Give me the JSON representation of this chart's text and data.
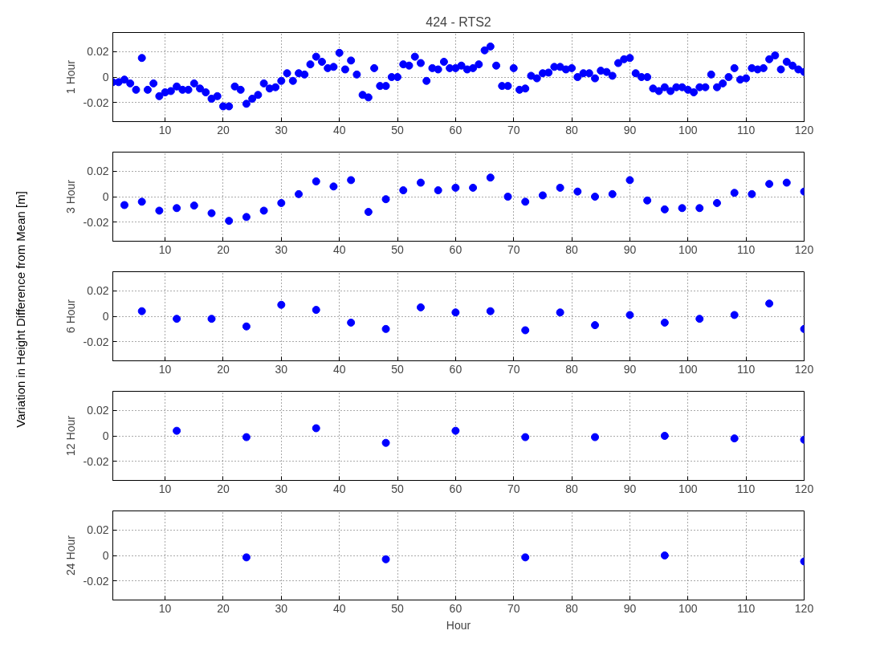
{
  "chart_data": [
    {
      "type": "scatter",
      "title": "424 - RTS2",
      "ylabel": "1 Hour",
      "annotations": [
        "Variation in Height Difference from Mean [m]"
      ],
      "xlim": [
        1,
        120
      ],
      "ylim": [
        -0.035,
        0.035
      ],
      "xticks": [
        10,
        20,
        30,
        40,
        50,
        60,
        70,
        80,
        90,
        100,
        110,
        120
      ],
      "yticks": [
        -0.02,
        0,
        0.02
      ],
      "grid": true,
      "marker": "circle",
      "x": [
        1,
        2,
        3,
        4,
        5,
        6,
        7,
        8,
        9,
        10,
        11,
        12,
        13,
        14,
        15,
        16,
        17,
        18,
        19,
        20,
        21,
        22,
        23,
        24,
        25,
        26,
        27,
        28,
        29,
        30,
        31,
        32,
        33,
        34,
        35,
        36,
        37,
        38,
        39,
        40,
        41,
        42,
        43,
        44,
        45,
        46,
        47,
        48,
        49,
        50,
        51,
        52,
        53,
        54,
        55,
        56,
        57,
        58,
        59,
        60,
        61,
        62,
        63,
        64,
        65,
        66,
        67,
        68,
        69,
        70,
        71,
        72,
        73,
        74,
        75,
        76,
        77,
        78,
        79,
        80,
        81,
        82,
        83,
        84,
        85,
        86,
        87,
        88,
        89,
        90,
        91,
        92,
        93,
        94,
        95,
        96,
        97,
        98,
        99,
        100,
        101,
        102,
        103,
        104,
        105,
        106,
        107,
        108,
        109,
        110,
        111,
        112,
        113,
        114,
        115,
        116,
        117,
        118,
        119,
        120
      ],
      "series": [
        {
          "color": "#0000ff",
          "values": [
            -0.004,
            -0.004,
            -0.002,
            -0.005,
            -0.01,
            0.015,
            -0.01,
            -0.005,
            -0.015,
            -0.012,
            -0.011,
            -0.0074,
            -0.01,
            -0.01,
            -0.005,
            -0.009,
            -0.012,
            -0.017,
            -0.015,
            -0.023,
            -0.023,
            -0.0074,
            -0.01,
            -0.021,
            -0.017,
            -0.014,
            -0.005,
            -0.009,
            -0.008,
            -0.003,
            0.003,
            -0.003,
            0.003,
            0.002,
            0.01,
            0.016,
            0.012,
            0.007,
            0.008,
            0.019,
            0.006,
            0.013,
            0.002,
            -0.014,
            -0.016,
            0.007,
            -0.007,
            -0.007,
            0.0,
            0.0,
            0.01,
            0.009,
            0.016,
            0.011,
            -0.003,
            0.007,
            0.006,
            0.012,
            0.007,
            0.007,
            0.009,
            0.006,
            0.007,
            0.01,
            0.021,
            0.024,
            0.009,
            -0.007,
            -0.007,
            0.007,
            -0.01,
            -0.009,
            0.001,
            -0.001,
            0.003,
            0.0035,
            0.008,
            0.008,
            0.006,
            0.007,
            0.0,
            0.003,
            0.003,
            -0.001,
            0.005,
            0.004,
            0.001,
            0.011,
            0.014,
            0.015,
            0.003,
            0.0,
            0.0,
            -0.009,
            -0.011,
            -0.008,
            -0.011,
            -0.008,
            -0.008,
            -0.01,
            -0.012,
            -0.008,
            -0.008,
            0.002,
            -0.008,
            -0.005,
            0.0,
            0.007,
            -0.002,
            -0.001,
            0.007,
            0.006,
            0.007,
            0.014,
            0.017,
            0.006,
            0.012,
            0.009,
            0.006,
            0.004
          ]
        }
      ]
    },
    {
      "type": "scatter",
      "ylabel": "3 Hour",
      "xlim": [
        1,
        120
      ],
      "ylim": [
        -0.035,
        0.035
      ],
      "xticks": [
        10,
        20,
        30,
        40,
        50,
        60,
        70,
        80,
        90,
        100,
        110,
        120
      ],
      "yticks": [
        -0.02,
        0,
        0.02
      ],
      "grid": true,
      "marker": "circle",
      "x": [
        3,
        6,
        9,
        12,
        15,
        18,
        21,
        24,
        27,
        30,
        33,
        36,
        39,
        42,
        45,
        48,
        51,
        54,
        57,
        60,
        63,
        66,
        69,
        72,
        75,
        78,
        81,
        84,
        87,
        90,
        93,
        96,
        99,
        102,
        105,
        108,
        111,
        114,
        117,
        120
      ],
      "series": [
        {
          "color": "#0000ff",
          "values": [
            -0.0066,
            -0.004,
            -0.011,
            -0.009,
            -0.007,
            -0.013,
            -0.019,
            -0.016,
            -0.011,
            -0.005,
            0.002,
            0.012,
            0.008,
            0.013,
            -0.012,
            -0.002,
            0.005,
            0.011,
            0.005,
            0.007,
            0.007,
            0.015,
            0.0,
            -0.004,
            0.001,
            0.007,
            0.004,
            0.0,
            0.002,
            0.013,
            -0.003,
            -0.01,
            -0.009,
            -0.009,
            -0.005,
            0.003,
            0.002,
            0.01,
            0.011,
            0.004
          ]
        }
      ]
    },
    {
      "type": "scatter",
      "ylabel": "6 Hour",
      "xlim": [
        1,
        120
      ],
      "ylim": [
        -0.035,
        0.035
      ],
      "xticks": [
        10,
        20,
        30,
        40,
        50,
        60,
        70,
        80,
        90,
        100,
        110,
        120
      ],
      "yticks": [
        -0.02,
        0,
        0.02
      ],
      "grid": true,
      "marker": "circle",
      "x": [
        6,
        12,
        18,
        24,
        30,
        36,
        42,
        48,
        54,
        60,
        66,
        72,
        78,
        84,
        90,
        96,
        102,
        108,
        114,
        120
      ],
      "series": [
        {
          "color": "#0000ff",
          "values": [
            0.004,
            -0.002,
            -0.002,
            -0.008,
            0.009,
            0.005,
            -0.005,
            -0.01,
            0.007,
            0.003,
            0.004,
            -0.011,
            0.003,
            -0.007,
            0.001,
            -0.005,
            -0.002,
            0.001,
            0.01,
            -0.01
          ]
        }
      ]
    },
    {
      "type": "scatter",
      "ylabel": "12 Hour",
      "xlim": [
        1,
        120
      ],
      "ylim": [
        -0.035,
        0.035
      ],
      "xticks": [
        10,
        20,
        30,
        40,
        50,
        60,
        70,
        80,
        90,
        100,
        110,
        120
      ],
      "yticks": [
        -0.02,
        0,
        0.02
      ],
      "grid": true,
      "marker": "circle",
      "x": [
        12,
        24,
        36,
        48,
        60,
        72,
        84,
        96,
        108,
        120
      ],
      "series": [
        {
          "color": "#0000ff",
          "values": [
            0.004,
            -0.001,
            0.006,
            -0.0055,
            0.004,
            -0.001,
            -0.001,
            0.0,
            -0.002,
            -0.003
          ]
        }
      ]
    },
    {
      "type": "scatter",
      "ylabel": "24 Hour",
      "xlabel": "Hour",
      "xlim": [
        1,
        120
      ],
      "ylim": [
        -0.035,
        0.035
      ],
      "xticks": [
        10,
        20,
        30,
        40,
        50,
        60,
        70,
        80,
        90,
        100,
        110,
        120
      ],
      "yticks": [
        -0.02,
        0,
        0.02
      ],
      "grid": true,
      "marker": "circle",
      "x": [
        24,
        48,
        72,
        96,
        120
      ],
      "series": [
        {
          "color": "#0000ff",
          "values": [
            -0.0015,
            -0.003,
            -0.0015,
            0.0,
            -0.0047
          ]
        }
      ]
    }
  ]
}
